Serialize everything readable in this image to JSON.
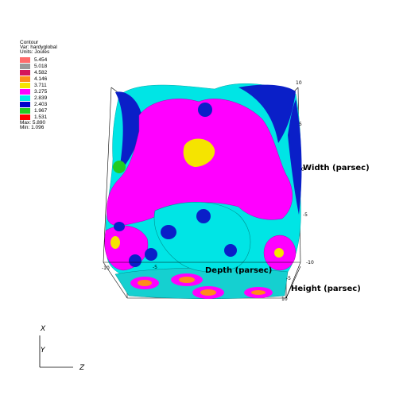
{
  "legend": {
    "plot_type": "Contour",
    "var": "Var: hardyglobal",
    "units": "Units: Joules",
    "levels": [
      {
        "value": "5.454",
        "color": "#ff6b6b"
      },
      {
        "value": "5.018",
        "color": "#9a9a9a"
      },
      {
        "value": "4.582",
        "color": "#d4145a"
      },
      {
        "value": "4.146",
        "color": "#ff8c1a"
      },
      {
        "value": "3.711",
        "color": "#f5e400"
      },
      {
        "value": "3.275",
        "color": "#ff00ff"
      },
      {
        "value": "2.839",
        "color": "#00e8e8"
      },
      {
        "value": "2.403",
        "color": "#0000cc"
      },
      {
        "value": "1.967",
        "color": "#22cc22"
      },
      {
        "value": "1.531",
        "color": "#ff0000"
      }
    ],
    "max": "Max: 5.890",
    "min": "Min: 1.096"
  },
  "axes": {
    "width_label": "Width (parsec)",
    "depth_label": "Depth (parsec)",
    "height_label": "Height (parsec)",
    "width_ticks": [
      "10",
      "5",
      "0",
      "-5",
      "-10"
    ],
    "depth_ticks": [
      "-10",
      "-5"
    ],
    "height_ticks": [
      "-5",
      "10"
    ]
  },
  "triad": {
    "x": "X",
    "y": "Y",
    "z": "Z"
  }
}
